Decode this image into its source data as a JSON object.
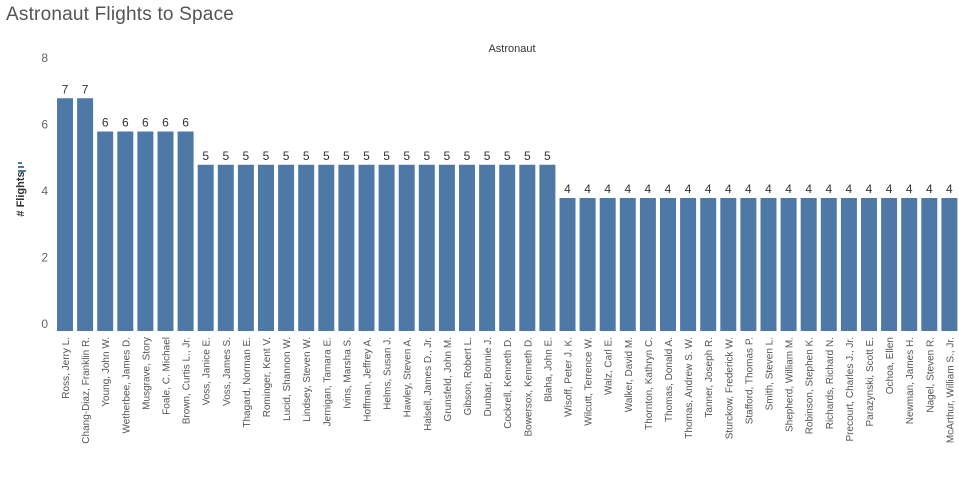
{
  "title": "Astronaut Flights to Space",
  "chart_data": {
    "type": "bar",
    "header": "Astronaut",
    "ylabel": "# Flights",
    "ylim": [
      0,
      8
    ],
    "yticks": [
      0,
      2,
      4,
      6,
      8
    ],
    "bar_color": "#4e79a7",
    "grid": false,
    "categories": [
      "Ross, Jerry L.",
      "Chang-Diaz, Franklin R.",
      "Young, John W.",
      "Wetherbee, James D.",
      "Musgrave, Story",
      "Foale, C. Michael",
      "Brown, Curtis L., Jr.",
      "Voss, Janice E.",
      "Voss, James S.",
      "Thagard, Norman E.",
      "Rominger, Kent V.",
      "Lucid, Shannon W.",
      "Lindsey, Steven W.",
      "Jernigan, Tamara E.",
      "Ivins, Marsha S.",
      "Hoffman, Jeffrey A.",
      "Helms, Susan J.",
      "Hawley, Steven A.",
      "Halsell, James D., Jr.",
      "Grunsfeld, John M.",
      "Gibson, Robert L.",
      "Dunbar, Bonnie J.",
      "Cockrell, Kenneth D.",
      "Bowersox, Kenneth D.",
      "Blaha, John E.",
      "Wisoff, Peter J. K.",
      "Wilcutt, Terrence W.",
      "Walz, Carl E.",
      "Walker, David M.",
      "Thornton, Kathryn C.",
      "Thomas, Donald A.",
      "Thomas, Andrew S. W.",
      "Tanner, Joseph R.",
      "Sturckow, Frederick W.",
      "Stafford, Thomas P.",
      "Smith, Steven L.",
      "Shepherd, William M.",
      "Robinson, Stephen K.",
      "Richards, Richard N.",
      "Precourt, Charles J., Jr.",
      "Parazynski, Scott E.",
      "Ochoa, Ellen",
      "Newman, James H.",
      "Nagel, Steven R.",
      "McArthur, William S., Jr."
    ],
    "values": [
      7,
      7,
      6,
      6,
      6,
      6,
      6,
      5,
      5,
      5,
      5,
      5,
      5,
      5,
      5,
      5,
      5,
      5,
      5,
      5,
      5,
      5,
      5,
      5,
      5,
      4,
      4,
      4,
      4,
      4,
      4,
      4,
      4,
      4,
      4,
      4,
      4,
      4,
      4,
      4,
      4,
      4,
      4,
      4,
      4
    ]
  }
}
